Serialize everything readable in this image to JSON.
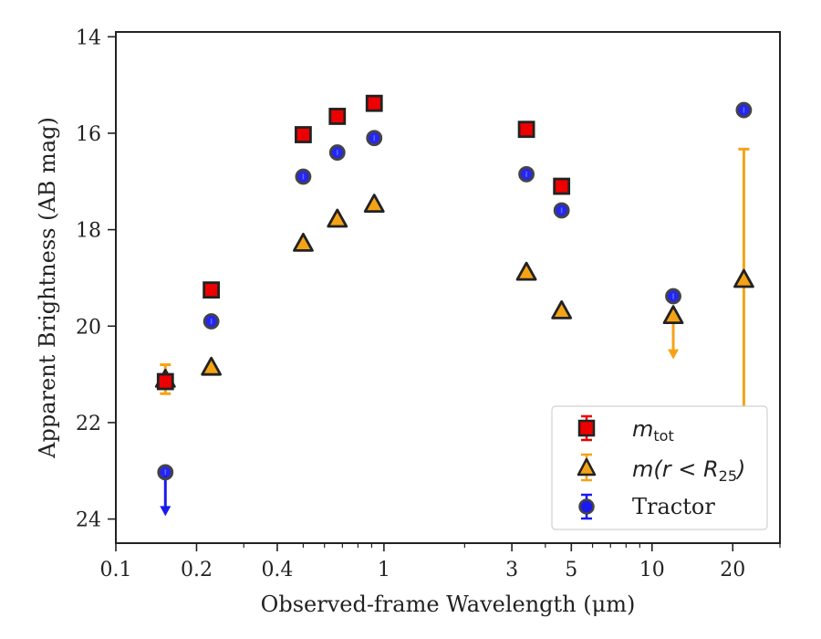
{
  "chart_data": {
    "type": "scatter",
    "xlabel": "Observed-frame Wavelength (μm)",
    "ylabel": "Apparent Brightness (AB mag)",
    "x_scale": "log",
    "xlim": [
      0.1,
      30
    ],
    "ylim": [
      24.5,
      13.9
    ],
    "y_inverted": true,
    "x_ticks": [
      {
        "value": 0.1,
        "label": "0.1"
      },
      {
        "value": 0.2,
        "label": "0.2"
      },
      {
        "value": 0.4,
        "label": "0.4"
      },
      {
        "value": 1,
        "label": "1"
      },
      {
        "value": 3,
        "label": "3"
      },
      {
        "value": 5,
        "label": "5"
      },
      {
        "value": 10,
        "label": "10"
      },
      {
        "value": 20,
        "label": "20"
      }
    ],
    "y_ticks": [
      {
        "value": 14,
        "label": "14"
      },
      {
        "value": 16,
        "label": "16"
      },
      {
        "value": 18,
        "label": "18"
      },
      {
        "value": 20,
        "label": "20"
      },
      {
        "value": 22,
        "label": "22"
      },
      {
        "value": 24,
        "label": "24"
      }
    ],
    "grid": false,
    "legend_position": "bottom-right",
    "series": [
      {
        "name": "m_tot",
        "marker": "square",
        "color": "#ee0000",
        "edge_color": "#222222",
        "points": [
          {
            "x": 0.153,
            "y": 21.15,
            "err_lo": 0.12,
            "err_hi": 0.12
          },
          {
            "x": 0.227,
            "y": 19.25
          },
          {
            "x": 0.5,
            "y": 16.03
          },
          {
            "x": 0.67,
            "y": 15.65
          },
          {
            "x": 0.92,
            "y": 15.38
          },
          {
            "x": 3.4,
            "y": 15.92
          },
          {
            "x": 4.6,
            "y": 17.1
          }
        ]
      },
      {
        "name": "m(r < R_25)",
        "marker": "triangle",
        "color": "#f5a316",
        "edge_color": "#222222",
        "points": [
          {
            "x": 0.153,
            "y": 21.1,
            "err_lo": 0.3,
            "err_hi": 0.3
          },
          {
            "x": 0.227,
            "y": 20.85
          },
          {
            "x": 0.5,
            "y": 18.28
          },
          {
            "x": 0.67,
            "y": 17.78
          },
          {
            "x": 0.92,
            "y": 17.47
          },
          {
            "x": 3.4,
            "y": 18.88
          },
          {
            "x": 4.6,
            "y": 19.68
          },
          {
            "x": 12.0,
            "y": 19.78,
            "upper_limit": true
          },
          {
            "x": 22.0,
            "y": 19.03,
            "err_lo": 2.7,
            "err_hi": 2.7
          }
        ]
      },
      {
        "name": "Tractor",
        "marker": "circle",
        "color": "#1a1aee",
        "edge_color": "#444444",
        "points": [
          {
            "x": 0.153,
            "y": 23.03,
            "upper_limit": true
          },
          {
            "x": 0.227,
            "y": 19.9
          },
          {
            "x": 0.5,
            "y": 16.9
          },
          {
            "x": 0.67,
            "y": 16.4
          },
          {
            "x": 0.92,
            "y": 16.1
          },
          {
            "x": 3.4,
            "y": 16.85
          },
          {
            "x": 4.6,
            "y": 17.6
          },
          {
            "x": 12.0,
            "y": 19.38
          },
          {
            "x": 22.0,
            "y": 15.52
          }
        ]
      }
    ]
  },
  "legend": {
    "mtot_main": "m",
    "mtot_sub": "tot",
    "mr_prefix": "m(r < R",
    "mr_sub": "25",
    "mr_suffix": ")",
    "tractor": "Tractor"
  }
}
